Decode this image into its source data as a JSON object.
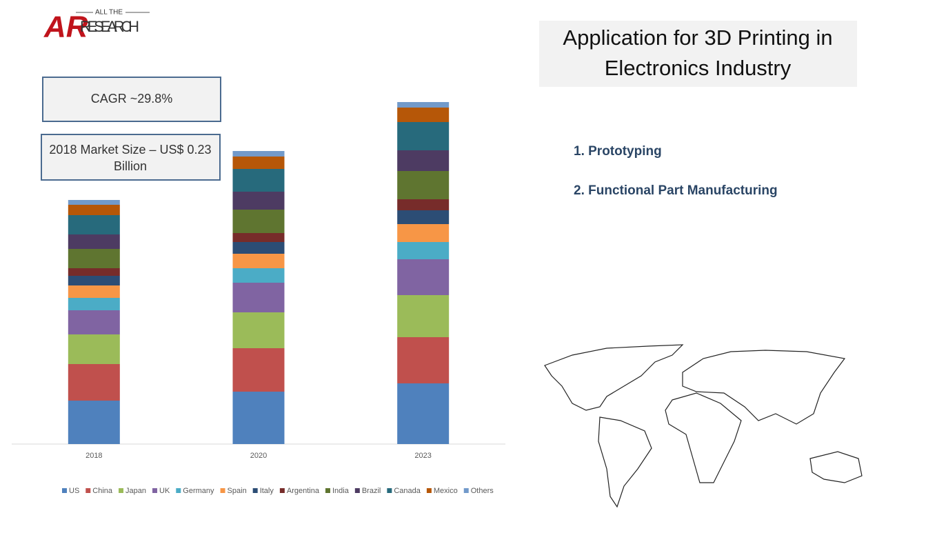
{
  "logo": {
    "top": "ALL THE",
    "name": "RESEARCH"
  },
  "callouts": {
    "cagr": "CAGR ~29.8%",
    "market_size": [
      "2018 Market Size – US$ 0.23",
      "Billion"
    ]
  },
  "panel": {
    "title": [
      "Application for 3D Printing in",
      "Electronics Industry"
    ],
    "items": [
      "1. Prototyping",
      "2.  Functional Part Manufacturing"
    ]
  },
  "chart_data": {
    "type": "stacked_bar",
    "categories": [
      "2018",
      "2020",
      "2023"
    ],
    "ylim": [
      0,
      500
    ],
    "series": [
      {
        "name": "US",
        "color": "#4f81bd",
        "values": [
          63,
          76,
          88
        ]
      },
      {
        "name": "China",
        "color": "#c0504d",
        "values": [
          53,
          63,
          67
        ]
      },
      {
        "name": "Japan",
        "color": "#9bbb59",
        "values": [
          43,
          52,
          61
        ]
      },
      {
        "name": "UK",
        "color": "#8064a2",
        "values": [
          35,
          43,
          52
        ]
      },
      {
        "name": "Germany",
        "color": "#4bacc6",
        "values": [
          18,
          21,
          25
        ]
      },
      {
        "name": "Spain",
        "color": "#f79646",
        "values": [
          18,
          21,
          26
        ]
      },
      {
        "name": "Italy",
        "color": "#2c4d75",
        "values": [
          14,
          17,
          20
        ]
      },
      {
        "name": "Argentina",
        "color": "#772c2a",
        "values": [
          11,
          13,
          16
        ]
      },
      {
        "name": "India",
        "color": "#5f7530",
        "values": [
          28,
          34,
          41
        ]
      },
      {
        "name": "Brazil",
        "color": "#4d3b62",
        "values": [
          21,
          26,
          30
        ]
      },
      {
        "name": "Canada",
        "color": "#276a7c",
        "values": [
          28,
          33,
          41
        ]
      },
      {
        "name": "Mexico",
        "color": "#b65708",
        "values": [
          15,
          18,
          21
        ]
      },
      {
        "name": "Others",
        "color": "#729aca",
        "values": [
          7,
          8,
          8
        ]
      }
    ]
  }
}
